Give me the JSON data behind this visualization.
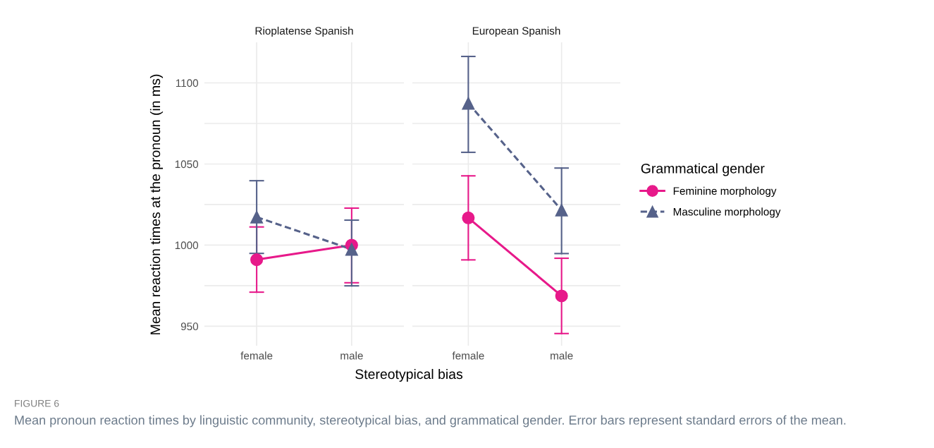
{
  "chart_data": [
    {
      "type": "line",
      "title": "Rioplatense Spanish",
      "categories": [
        "female",
        "male"
      ],
      "ylabel": "Mean reaction times at the pronoun (in ms)",
      "xlabel": "Stereotypical bias",
      "ylim": [
        938,
        1125
      ],
      "yticks": [
        950,
        {
          "value": 975,
          "label": null
        },
        1000,
        {
          "value": 1025,
          "label": null
        },
        1050,
        {
          "value": 1075,
          "label": null
        },
        1100
      ],
      "grid": true,
      "legend": "right",
      "legend_title": "Grammatical gender",
      "annotations": [
        "FIGURE 6",
        "Mean pronoun reaction times by linguistic community, stereotypical bias, and grammatical gender. Error bars represent standard errors of the mean."
      ],
      "series": [
        {
          "name": "Feminine morphology",
          "color": "#e7198a",
          "marker": "circle",
          "line_style": "solid",
          "values": [
            991,
            1000
          ],
          "errors": [
            [
              971,
              1011.2
            ],
            [
              976.8,
              1022.8
            ]
          ]
        },
        {
          "name": "Masculine morphology",
          "color": "#56628a",
          "marker": "triangle",
          "line_style": "dashed",
          "values": [
            1017.3,
            997.4
          ],
          "errors": [
            [
              994.9,
              1039.7
            ],
            [
              974.9,
              1015.4
            ]
          ]
        }
      ]
    },
    {
      "type": "line",
      "title": "European Spanish",
      "categories": [
        "female",
        "male"
      ],
      "ylim": [
        938,
        1125
      ],
      "yticks": [
        950,
        {
          "value": 975,
          "label": null
        },
        1000,
        {
          "value": 1025,
          "label": null
        },
        1050,
        {
          "value": 1075,
          "label": null
        },
        1100
      ],
      "tick_labels": "x",
      "grid": true,
      "series": [
        {
          "color": "#e7198a",
          "marker": "circle",
          "line_style": "solid",
          "values": [
            1016.8,
            968.7
          ],
          "errors": [
            [
              990.9,
              1042.7
            ],
            [
              945.5,
              991.9
            ]
          ]
        },
        {
          "color": "#56628a",
          "marker": "triangle",
          "line_style": "dashed",
          "values": [
            1087.4,
            1021.6
          ],
          "errors": [
            [
              1057.2,
              1116.3
            ],
            [
              994.8,
              1047.5
            ]
          ]
        }
      ]
    }
  ]
}
